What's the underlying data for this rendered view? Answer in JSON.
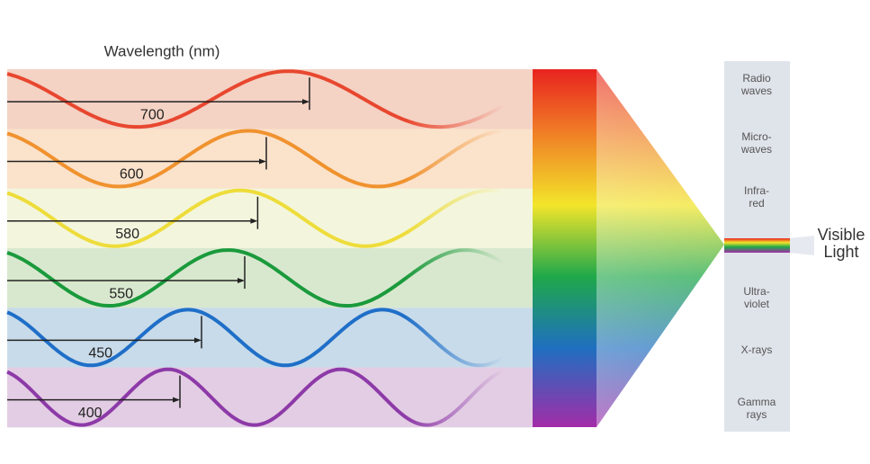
{
  "header": {
    "title": "Wavelength (nm)"
  },
  "wavelengths": [
    700,
    600,
    580,
    550,
    450,
    400
  ],
  "spectrum": [
    [
      "Radio",
      "waves"
    ],
    [
      "Micro-",
      "waves"
    ],
    [
      "Infra-",
      "red"
    ],
    [
      "Ultra-",
      "violet"
    ],
    [
      "X-rays"
    ],
    [
      "Gamma",
      "rays"
    ]
  ],
  "visible": [
    "Visible",
    "Light"
  ]
}
